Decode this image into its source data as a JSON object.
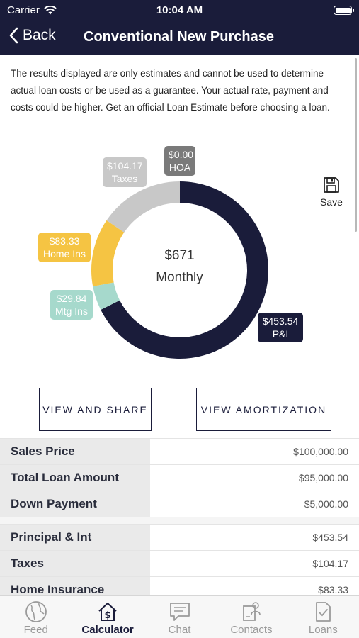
{
  "status": {
    "carrier": "Carrier",
    "time": "10:04 AM"
  },
  "nav": {
    "back_label": "Back",
    "title": "Conventional New Purchase"
  },
  "disclaimer": "The results displayed are only estimates and cannot be used to determine actual loan costs or be used as a guarantee. Your actual rate, payment and costs could be higher.   Get an official Loan Estimate before choosing a loan.",
  "chart_data": {
    "type": "pie",
    "center_value": "$671",
    "center_label": "Monthly",
    "slices": [
      {
        "name": "P&I",
        "amount": "$453.54",
        "value": 453.54,
        "color": "#1a1c3a"
      },
      {
        "name": "Mtg Ins",
        "amount": "$29.84",
        "value": 29.84,
        "color": "#a6d9cc"
      },
      {
        "name": "Home Ins",
        "amount": "$83.33",
        "value": 83.33,
        "color": "#f5c443"
      },
      {
        "name": "Taxes",
        "amount": "$104.17",
        "value": 104.17,
        "color": "#c8c8c8"
      },
      {
        "name": "HOA",
        "amount": "$0.00",
        "value": 0,
        "color": "#7a7a7a"
      }
    ]
  },
  "save_label": "Save",
  "buttons": {
    "share": "VIEW AND SHARE",
    "amortization": "VIEW AMORTIZATION"
  },
  "summary": [
    {
      "label": "Sales Price",
      "value": "$100,000.00"
    },
    {
      "label": "Total Loan Amount",
      "value": "$95,000.00"
    },
    {
      "label": "Down Payment",
      "value": "$5,000.00"
    }
  ],
  "payments": [
    {
      "label": "Principal & Int",
      "value": "$453.54"
    },
    {
      "label": "Taxes",
      "value": "$104.17"
    },
    {
      "label": "Home Insurance",
      "value": "$83.33"
    }
  ],
  "tabs": [
    {
      "label": "Feed",
      "icon": "globe-icon"
    },
    {
      "label": "Calculator",
      "icon": "calculator-house-icon"
    },
    {
      "label": "Chat",
      "icon": "chat-icon"
    },
    {
      "label": "Contacts",
      "icon": "contacts-icon"
    },
    {
      "label": "Loans",
      "icon": "document-check-icon"
    }
  ]
}
